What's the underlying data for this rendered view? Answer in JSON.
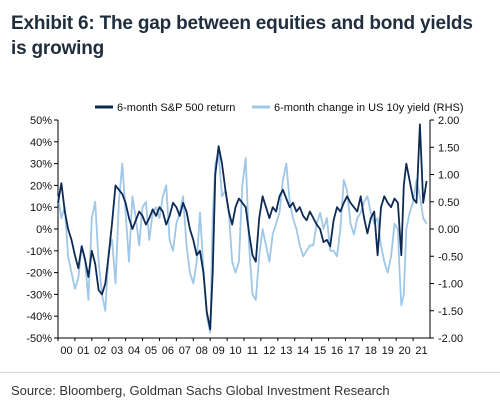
{
  "title": "Exhibit 6: The gap between equities and bond yields is growing",
  "source": "Source: Bloomberg, Goldman Sachs Global Investment Research",
  "chart_data": {
    "type": "line",
    "left_axis": {
      "range": [
        -50,
        50
      ],
      "ticks": [
        50,
        40,
        30,
        20,
        10,
        0,
        -10,
        -20,
        -30,
        -40,
        -50
      ],
      "tick_labels": [
        "50%",
        "40%",
        "30%",
        "20%",
        "10%",
        "0%",
        "-10%",
        "-20%",
        "-30%",
        "-40%",
        "-50%"
      ]
    },
    "right_axis": {
      "range": [
        -2.0,
        2.0
      ],
      "ticks": [
        2.0,
        1.5,
        1.0,
        0.5,
        0.0,
        -0.5,
        -1.0,
        -1.5,
        -2.0
      ],
      "tick_labels": [
        "2.00",
        "1.50",
        "1.00",
        "0.50",
        "0.00",
        "-0.50",
        "-1.00",
        "-1.50",
        "-2.00"
      ]
    },
    "x_axis": {
      "range": [
        2000,
        2022
      ],
      "tick_labels": [
        "00",
        "01",
        "02",
        "03",
        "04",
        "05",
        "06",
        "07",
        "08",
        "09",
        "10",
        "11",
        "12",
        "13",
        "14",
        "15",
        "16",
        "17",
        "18",
        "19",
        "20",
        "21"
      ]
    },
    "grid": false,
    "legend_position": "top",
    "colors": {
      "sp500": "#0d2a55",
      "yield": "#9fc7e8",
      "axis": "#000000"
    },
    "series": [
      {
        "name": "6-month S&P 500 return",
        "axis": "left",
        "x": [
          2000.0,
          2000.2,
          2000.4,
          2000.6,
          2000.8,
          2001.0,
          2001.2,
          2001.4,
          2001.6,
          2001.8,
          2002.0,
          2002.2,
          2002.4,
          2002.6,
          2002.8,
          2003.0,
          2003.2,
          2003.4,
          2003.6,
          2003.8,
          2004.0,
          2004.2,
          2004.4,
          2004.6,
          2004.8,
          2005.0,
          2005.2,
          2005.4,
          2005.6,
          2005.8,
          2006.0,
          2006.2,
          2006.4,
          2006.6,
          2006.8,
          2007.0,
          2007.2,
          2007.4,
          2007.6,
          2007.8,
          2008.0,
          2008.2,
          2008.4,
          2008.6,
          2008.8,
          2009.0,
          2009.15,
          2009.3,
          2009.5,
          2009.7,
          2009.9,
          2010.1,
          2010.3,
          2010.5,
          2010.7,
          2010.9,
          2011.1,
          2011.3,
          2011.5,
          2011.7,
          2011.9,
          2012.1,
          2012.3,
          2012.5,
          2012.7,
          2012.9,
          2013.1,
          2013.3,
          2013.5,
          2013.7,
          2013.9,
          2014.1,
          2014.3,
          2014.5,
          2014.7,
          2014.9,
          2015.1,
          2015.3,
          2015.5,
          2015.7,
          2015.9,
          2016.1,
          2016.3,
          2016.5,
          2016.7,
          2016.9,
          2017.1,
          2017.3,
          2017.5,
          2017.7,
          2017.9,
          2018.1,
          2018.3,
          2018.5,
          2018.7,
          2018.9,
          2019.1,
          2019.3,
          2019.5,
          2019.7,
          2019.9,
          2020.1,
          2020.2,
          2020.3,
          2020.45,
          2020.6,
          2020.8,
          2021.0,
          2021.2,
          2021.4,
          2021.6,
          2021.8
        ],
        "values": [
          12,
          21,
          8,
          0,
          -5,
          -12,
          -18,
          -8,
          -14,
          -22,
          -10,
          -16,
          -28,
          -30,
          -25,
          -12,
          3,
          20,
          18,
          16,
          12,
          5,
          0,
          4,
          8,
          6,
          2,
          5,
          9,
          6,
          10,
          8,
          2,
          6,
          12,
          10,
          6,
          12,
          8,
          0,
          -5,
          -12,
          -10,
          -20,
          -38,
          -46,
          -20,
          25,
          38,
          30,
          18,
          8,
          2,
          10,
          14,
          12,
          10,
          -2,
          -12,
          -15,
          5,
          15,
          10,
          5,
          10,
          8,
          15,
          18,
          14,
          10,
          12,
          8,
          10,
          6,
          4,
          8,
          5,
          2,
          0,
          -6,
          -5,
          -8,
          4,
          10,
          8,
          12,
          15,
          12,
          10,
          8,
          15,
          5,
          -2,
          5,
          8,
          -12,
          10,
          15,
          12,
          10,
          14,
          12,
          0,
          -12,
          20,
          30,
          22,
          14,
          12,
          48,
          12,
          22
        ]
      },
      {
        "name": "6-month change in US 10y yield (RHS)",
        "axis": "right",
        "x": [
          2000.0,
          2000.2,
          2000.4,
          2000.6,
          2000.8,
          2001.0,
          2001.2,
          2001.4,
          2001.6,
          2001.8,
          2002.0,
          2002.2,
          2002.4,
          2002.6,
          2002.8,
          2003.0,
          2003.2,
          2003.4,
          2003.6,
          2003.8,
          2004.0,
          2004.2,
          2004.4,
          2004.6,
          2004.8,
          2005.0,
          2005.2,
          2005.4,
          2005.6,
          2005.8,
          2006.0,
          2006.2,
          2006.4,
          2006.6,
          2006.8,
          2007.0,
          2007.2,
          2007.4,
          2007.6,
          2007.8,
          2008.0,
          2008.2,
          2008.4,
          2008.6,
          2008.8,
          2009.0,
          2009.15,
          2009.3,
          2009.5,
          2009.7,
          2009.9,
          2010.1,
          2010.3,
          2010.5,
          2010.7,
          2010.9,
          2011.1,
          2011.3,
          2011.5,
          2011.7,
          2011.9,
          2012.1,
          2012.3,
          2012.5,
          2012.7,
          2012.9,
          2013.1,
          2013.3,
          2013.5,
          2013.7,
          2013.9,
          2014.1,
          2014.3,
          2014.5,
          2014.7,
          2014.9,
          2015.1,
          2015.3,
          2015.5,
          2015.7,
          2015.9,
          2016.1,
          2016.3,
          2016.5,
          2016.7,
          2016.9,
          2017.1,
          2017.3,
          2017.5,
          2017.7,
          2017.9,
          2018.1,
          2018.3,
          2018.5,
          2018.7,
          2018.9,
          2019.1,
          2019.3,
          2019.5,
          2019.7,
          2019.9,
          2020.1,
          2020.2,
          2020.3,
          2020.45,
          2020.6,
          2020.8,
          2021.0,
          2021.2,
          2021.4,
          2021.6,
          2021.8
        ],
        "values": [
          0.6,
          0.2,
          0.4,
          -0.5,
          -0.8,
          -1.1,
          -0.9,
          -0.3,
          -0.6,
          -1.3,
          0.2,
          0.5,
          -0.6,
          -1.2,
          -1.5,
          -0.4,
          -0.2,
          -1.0,
          0.5,
          1.2,
          0.3,
          -0.6,
          0.6,
          0.2,
          -0.3,
          0.4,
          0.5,
          -0.2,
          0.3,
          0.4,
          0.2,
          0.6,
          0.8,
          -0.2,
          -0.4,
          0.1,
          0.3,
          0.6,
          -0.3,
          -0.8,
          -1.0,
          -0.6,
          0.3,
          -0.7,
          -1.6,
          -1.9,
          0.2,
          1.2,
          1.4,
          0.6,
          0.7,
          0.3,
          -0.6,
          -0.8,
          -0.6,
          0.8,
          1.3,
          -0.3,
          -1.2,
          -1.3,
          -0.5,
          0.0,
          -0.3,
          -0.6,
          -0.1,
          0.1,
          0.3,
          0.9,
          1.2,
          0.5,
          0.2,
          0.0,
          -0.3,
          -0.5,
          -0.4,
          -0.3,
          -0.3,
          0.1,
          0.3,
          0.0,
          0.2,
          -0.4,
          -0.4,
          -0.5,
          0.0,
          0.9,
          0.7,
          0.1,
          -0.1,
          0.2,
          0.3,
          0.5,
          0.6,
          0.3,
          0.1,
          0.2,
          -0.3,
          -0.6,
          -0.8,
          -0.5,
          0.1,
          0.0,
          -0.8,
          -1.4,
          -1.2,
          0.0,
          0.3,
          0.5,
          0.9,
          0.6,
          0.2,
          0.1
        ]
      }
    ]
  }
}
